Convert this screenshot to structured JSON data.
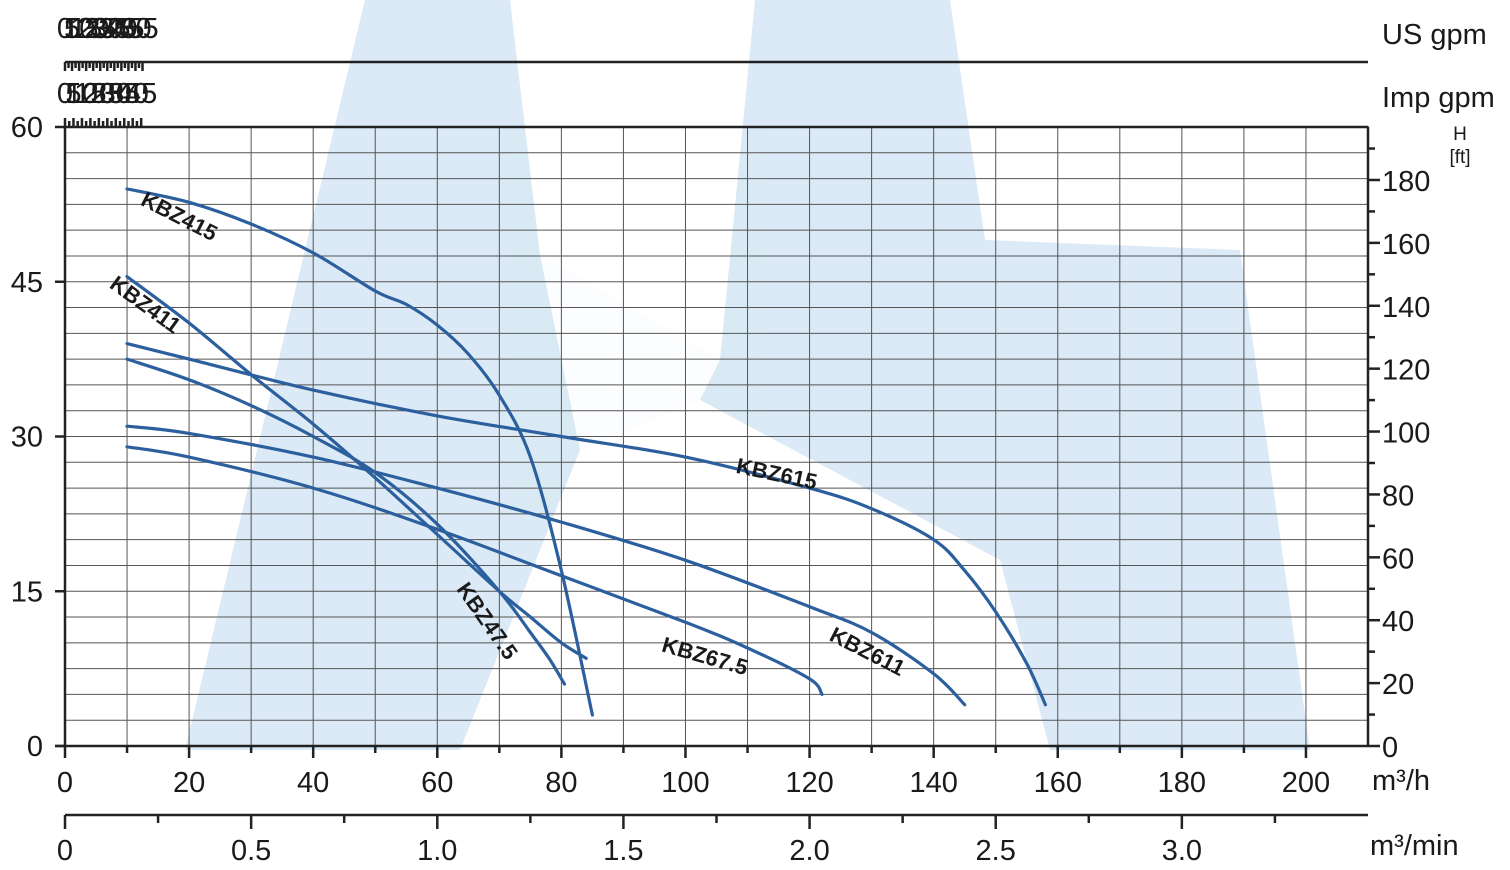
{
  "chart_data": {
    "type": "line",
    "title": "",
    "axes": {
      "flow_m3h": {
        "label": "m³/h",
        "range": [
          0,
          210
        ],
        "ticks": [
          0,
          20,
          40,
          60,
          80,
          100,
          120,
          140,
          160,
          180,
          200
        ]
      },
      "flow_m3min": {
        "label": "m³/min",
        "ticks": [
          0,
          0.5,
          1.0,
          1.5,
          2.0,
          2.5,
          3.0
        ],
        "tick_labels": [
          "0",
          "0.5",
          "1.0",
          "1.5",
          "2.0",
          "2.5",
          "3.0"
        ]
      },
      "flow_usgpm": {
        "label": "US gpm",
        "ticks": [
          0,
          5,
          10,
          15,
          20,
          25,
          30,
          35,
          40,
          45,
          50,
          55
        ]
      },
      "flow_impgpm": {
        "label": "Imp gpm",
        "ticks": [
          0,
          5,
          10,
          15,
          20,
          25,
          30,
          35,
          40,
          45
        ]
      },
      "head_m": {
        "label": "",
        "range": [
          0,
          60
        ],
        "ticks": [
          0,
          15,
          30,
          45,
          60
        ]
      },
      "head_ft": {
        "label": "H",
        "unit": "[ft]",
        "ticks": [
          0,
          20,
          40,
          60,
          80,
          100,
          120,
          140,
          160,
          180
        ]
      }
    },
    "grid": true,
    "series": [
      {
        "name": "KBZ415",
        "x": [
          10,
          20,
          30,
          40,
          50,
          55,
          60,
          65,
          70,
          75,
          80,
          85
        ],
        "y": [
          54,
          52.7,
          50.6,
          47.8,
          44.1,
          42.8,
          40.8,
          38,
          34,
          28,
          17,
          3
        ]
      },
      {
        "name": "KBZ411",
        "x": [
          10,
          20,
          30,
          40,
          50,
          60,
          70,
          75,
          80,
          84
        ],
        "y": [
          45.5,
          41,
          36,
          31.2,
          26,
          20.5,
          15,
          12.5,
          10,
          8.5
        ]
      },
      {
        "name": "KBZ615",
        "x": [
          10,
          20,
          40,
          60,
          80,
          100,
          120,
          130,
          140,
          145,
          150,
          155,
          158
        ],
        "y": [
          39,
          37.5,
          34.5,
          32,
          30,
          28,
          25,
          23,
          20,
          17,
          13,
          8,
          4
        ]
      },
      {
        "name": "KBZ47.5",
        "x": [
          10,
          20,
          30,
          40,
          50,
          60,
          70,
          75,
          78,
          80.5
        ],
        "y": [
          37.5,
          35.5,
          33,
          30,
          26.5,
          21.5,
          15,
          11,
          8.5,
          6
        ]
      },
      {
        "name": "KBZ611",
        "x": [
          10,
          20,
          40,
          60,
          80,
          100,
          120,
          130,
          140,
          145
        ],
        "y": [
          31,
          30.3,
          28,
          25,
          21.7,
          18,
          13.5,
          11,
          7,
          4
        ]
      },
      {
        "name": "KBZ67.5",
        "x": [
          10,
          20,
          40,
          60,
          80,
          100,
          110,
          120,
          122
        ],
        "y": [
          29,
          28,
          25,
          21,
          16.5,
          12,
          9.5,
          6.5,
          5
        ]
      }
    ],
    "curve_labels": [
      "KBZ415",
      "KBZ411",
      "KBZ615",
      "KBZ47.5",
      "KBZ67.5",
      "KBZ611"
    ]
  }
}
